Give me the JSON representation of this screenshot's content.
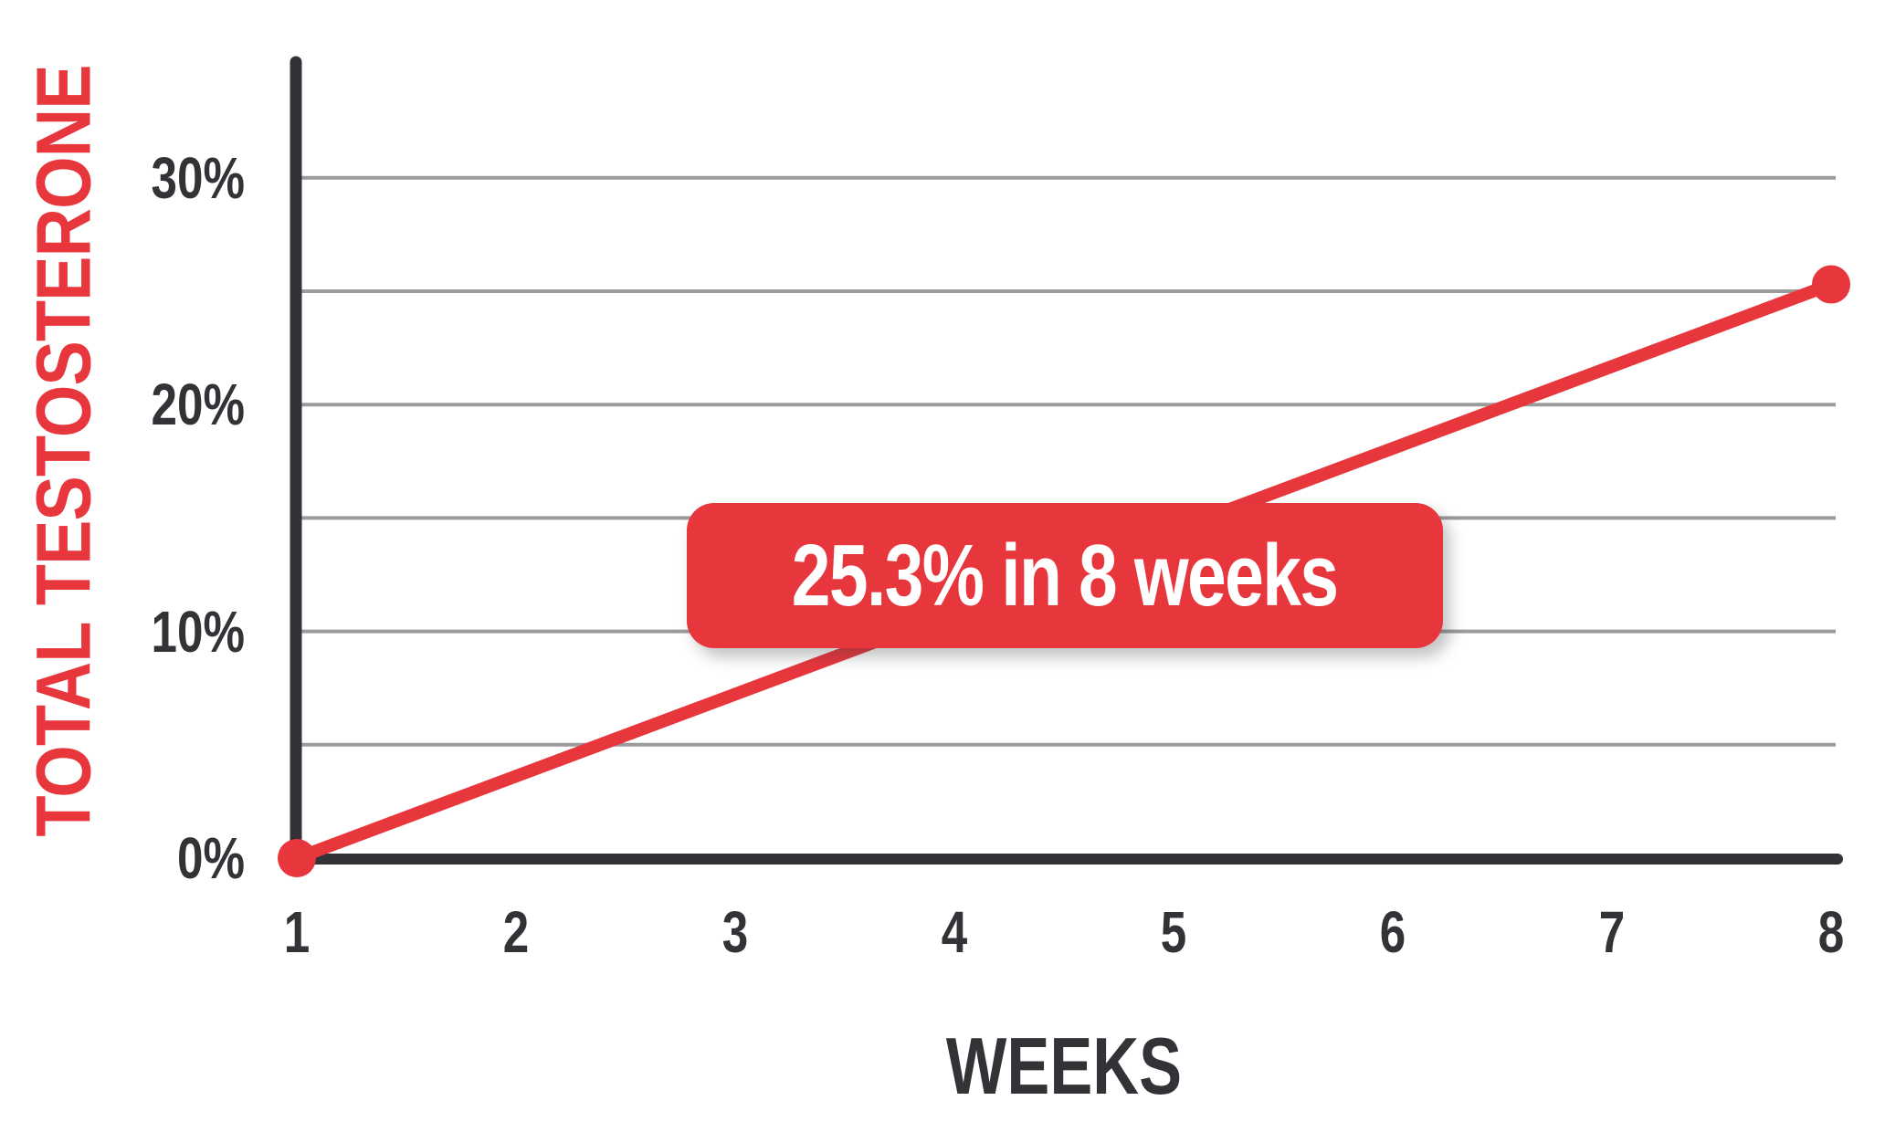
{
  "chart_data": {
    "type": "line",
    "title": "",
    "xlabel": "WEEKS",
    "ylabel": "TOTAL TESTOSTERONE",
    "x_ticks": [
      "1",
      "2",
      "3",
      "4",
      "5",
      "6",
      "7",
      "8"
    ],
    "x_range": [
      1,
      8
    ],
    "y_ticks": [
      {
        "label": "0%",
        "value": 0
      },
      {
        "label": "10%",
        "value": 10
      },
      {
        "label": "20%",
        "value": 20
      },
      {
        "label": "30%",
        "value": 30
      }
    ],
    "gridline_values": [
      5,
      10,
      15,
      20,
      25,
      30
    ],
    "ylim": [
      0,
      35
    ],
    "grid": true,
    "legend_position": "none",
    "series": [
      {
        "name": "total-testosterone-increase",
        "points": [
          {
            "week": 1,
            "value": 0
          },
          {
            "week": 8,
            "value": 25.3
          }
        ]
      }
    ],
    "annotation": {
      "text": "25.3% in 8 weeks"
    },
    "colors": {
      "accent": "#e8363d",
      "axis": "#333236",
      "grid": "#9b9b9b",
      "annotation_bg": "#e8363d",
      "annotation_text": "#ffffff"
    }
  }
}
